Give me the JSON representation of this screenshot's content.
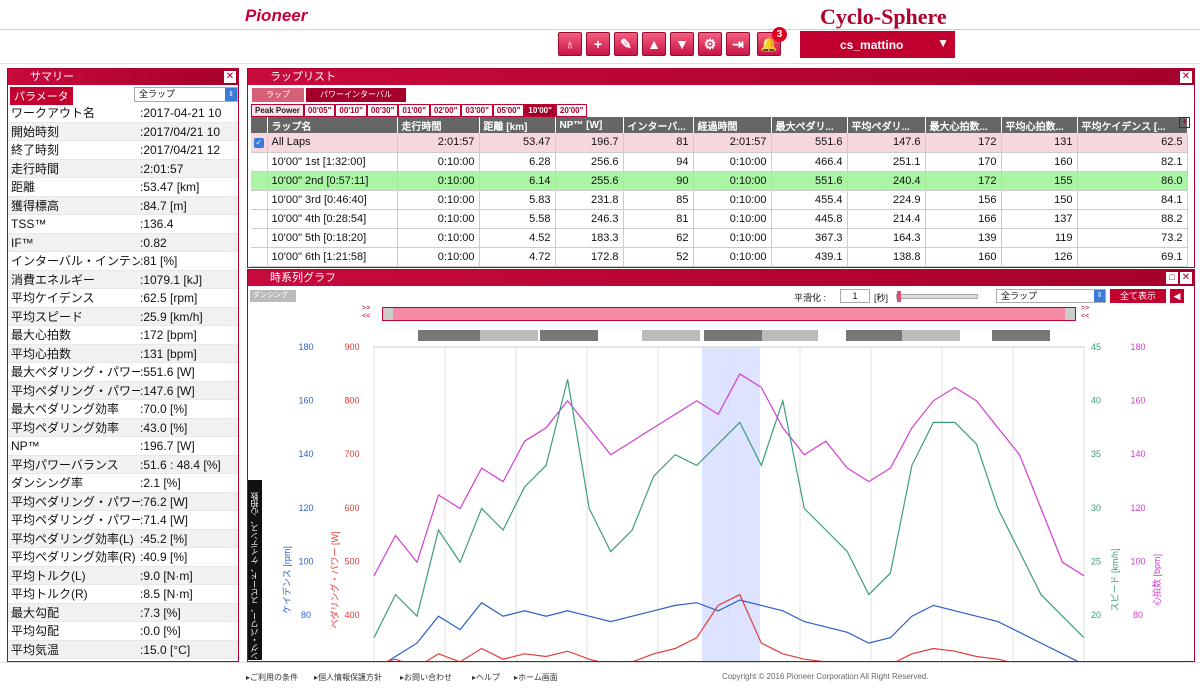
{
  "header": {
    "brand": "Pioneer",
    "app_title": "Cyclo-Sphere",
    "notification_count": "3",
    "user": "cs_mattino"
  },
  "toolbar": [
    {
      "icon": "bike-icon",
      "glyph": "♁"
    },
    {
      "icon": "plus-icon",
      "glyph": "+"
    },
    {
      "icon": "edit-icon",
      "glyph": "✎"
    },
    {
      "icon": "arrow-up-icon",
      "glyph": "▲"
    },
    {
      "icon": "arrow-down-icon",
      "glyph": "▼"
    },
    {
      "icon": "gear-icon",
      "glyph": "⚙"
    },
    {
      "icon": "export-icon",
      "glyph": "⇥"
    }
  ],
  "summary": {
    "title": "サマリー",
    "param_label": "パラメータ",
    "lap_select": "全ラップ",
    "rows": [
      [
        "ワークアウト名",
        ":2017-04-21 10"
      ],
      [
        "開始時刻",
        ":2017/04/21 10"
      ],
      [
        "終了時刻",
        ":2017/04/21 12"
      ],
      [
        "走行時間",
        ":2:01:57"
      ],
      [
        "距離",
        ":53.47 [km]"
      ],
      [
        "獲得標高",
        ":84.7 [m]"
      ],
      [
        "TSS™",
        ":136.4"
      ],
      [
        "IF™",
        ":0.82"
      ],
      [
        "インターバル・インテン",
        ":81 [%]"
      ],
      [
        "消費エネルギー",
        ":1079.1 [kJ]"
      ],
      [
        "平均ケイデンス",
        ":62.5 [rpm]"
      ],
      [
        "平均スピード",
        ":25.9 [km/h]"
      ],
      [
        "最大心拍数",
        ":172 [bpm]"
      ],
      [
        "平均心拍数",
        ":131 [bpm]"
      ],
      [
        "最大ペダリング・パワー",
        ":551.6 [W]"
      ],
      [
        "平均ペダリング・パワー",
        ":147.6 [W]"
      ],
      [
        "最大ペダリング効率",
        ":70.0 [%]"
      ],
      [
        "平均ペダリング効率",
        ":43.0 [%]"
      ],
      [
        "NP™",
        ":196.7 [W]"
      ],
      [
        "平均パワーバランス",
        ":51.6 : 48.4 [%]"
      ],
      [
        "ダンシング率",
        ":2.1 [%]"
      ],
      [
        "平均ペダリング・パワー(L",
        ":76.2 [W]"
      ],
      [
        "平均ペダリング・パワー(F",
        ":71.4 [W]"
      ],
      [
        "平均ペダリング効率(L)",
        ":45.2 [%]"
      ],
      [
        "平均ペダリング効率(R)",
        ":40.9 [%]"
      ],
      [
        "平均トルク(L)",
        ":9.0 [N·m]"
      ],
      [
        "平均トルク(R)",
        ":8.5 [N·m]"
      ],
      [
        "最大勾配",
        ":7.3 [%]"
      ],
      [
        "平均勾配",
        ":0.0 [%]"
      ],
      [
        "平均気温",
        ":15.0 [°C]"
      ]
    ]
  },
  "laplist": {
    "title": "ラップリスト",
    "tabs": [
      "ラップ",
      "パワーインターバル"
    ],
    "peak_label": "Peak Power",
    "peaks": [
      "00'05\"",
      "00'10\"",
      "00'30\"",
      "01'00\"",
      "02'00\"",
      "03'00\"",
      "05'00\"",
      "10'00\"",
      "20'00\""
    ],
    "columns": [
      "ラップ名",
      "走行時間",
      "距離 [km]",
      "NP™ [W]",
      "インターバ...",
      "経過時間",
      "最大ペダリ...",
      "平均ペダリ...",
      "最大心拍数...",
      "平均心拍数...",
      "平均ケイデンス [..."
    ],
    "rows": [
      [
        "All Laps",
        "2:01:57",
        "53.47",
        "196.7",
        "81",
        "2:01:57",
        "551.6",
        "147.6",
        "172",
        "131",
        "62.5"
      ],
      [
        "10'00\" 1st [1:32:00]",
        "0:10:00",
        "6.28",
        "256.6",
        "94",
        "0:10:00",
        "466.4",
        "251.1",
        "170",
        "160",
        "82.1"
      ],
      [
        "10'00\" 2nd [0:57:11]",
        "0:10:00",
        "6.14",
        "255.6",
        "90",
        "0:10:00",
        "551.6",
        "240.4",
        "172",
        "155",
        "86.0"
      ],
      [
        "10'00\" 3rd [0:46:40]",
        "0:10:00",
        "5.83",
        "231.8",
        "85",
        "0:10:00",
        "455.4",
        "224.9",
        "156",
        "150",
        "84.1"
      ],
      [
        "10'00\" 4th [0:28:54]",
        "0:10:00",
        "5.58",
        "246.3",
        "81",
        "0:10:00",
        "445.8",
        "214.4",
        "166",
        "137",
        "88.2"
      ],
      [
        "10'00\" 5th [0:18:20]",
        "0:10:00",
        "4.52",
        "183.3",
        "62",
        "0:10:00",
        "367.3",
        "164.3",
        "139",
        "119",
        "73.2"
      ],
      [
        "10'00\" 6th [1:21:58]",
        "0:10:00",
        "4.72",
        "172.8",
        "52",
        "0:10:00",
        "439.1",
        "138.8",
        "160",
        "126",
        "69.1"
      ]
    ]
  },
  "graph": {
    "title": "時系列グラフ",
    "dancing": "ダンシング",
    "smoothing_label": "平滑化 :",
    "smoothing_value": "1",
    "smoothing_unit": "[秒]",
    "lap_select": "全ラップ",
    "show_all": "全て表示",
    "side_label": "ング・パワー、スピード、ケイデンス、心拍数",
    "axis_cadence_label": "ケイデンス [rpm]",
    "axis_power_label": "ペダリング・パワー [W]",
    "axis_speed_label": "スピード [km/h]",
    "axis_hr_label": "心拍数 [bpm]",
    "cadence_ticks": [
      "180",
      "160",
      "140",
      "120",
      "100",
      "80"
    ],
    "power_ticks": [
      "900",
      "800",
      "700",
      "600",
      "500",
      "400"
    ],
    "speed_ticks": [
      "45",
      "40",
      "35",
      "30",
      "25",
      "20"
    ],
    "hr_ticks": [
      "180",
      "160",
      "140",
      "120",
      "100",
      "80"
    ]
  },
  "chart_data": {
    "type": "line",
    "x_range": [
      0,
      100
    ],
    "ylim_power": [
      300,
      900
    ],
    "ylim_hr": [
      60,
      180
    ],
    "ylim_speed": [
      15,
      45
    ],
    "ylim_cadence": [
      60,
      180
    ],
    "series": [
      {
        "name": "心拍数",
        "color": "#d23bd2",
        "values": [
          95,
          110,
          100,
          125,
          120,
          135,
          130,
          145,
          150,
          160,
          150,
          140,
          145,
          150,
          155,
          160,
          155,
          170,
          165,
          150,
          140,
          145,
          135,
          130,
          135,
          150,
          160,
          165,
          160,
          150,
          140,
          120,
          100,
          95
        ]
      },
      {
        "name": "スピード",
        "color": "#3c9e78",
        "values": [
          18,
          22,
          20,
          28,
          25,
          30,
          28,
          32,
          34,
          42,
          30,
          26,
          28,
          33,
          35,
          34,
          36,
          38,
          34,
          40,
          30,
          28,
          26,
          22,
          24,
          34,
          38,
          38,
          36,
          30,
          26,
          22,
          20,
          18
        ]
      },
      {
        "name": "ケイデンス",
        "color": "#2a5fc7",
        "values": [
          60,
          65,
          70,
          80,
          75,
          85,
          80,
          82,
          80,
          82,
          80,
          78,
          80,
          82,
          84,
          85,
          82,
          86,
          84,
          82,
          78,
          76,
          74,
          70,
          72,
          80,
          84,
          82,
          80,
          78,
          74,
          70,
          66,
          62
        ]
      },
      {
        "name": "ペダリング・パワー",
        "color": "#e23c3c",
        "values": [
          310,
          320,
          305,
          330,
          315,
          340,
          320,
          330,
          325,
          335,
          320,
          310,
          315,
          330,
          340,
          360,
          420,
          440,
          350,
          330,
          320,
          315,
          310,
          305,
          310,
          330,
          340,
          335,
          325,
          320,
          310,
          305,
          300,
          300
        ]
      }
    ]
  }
}
